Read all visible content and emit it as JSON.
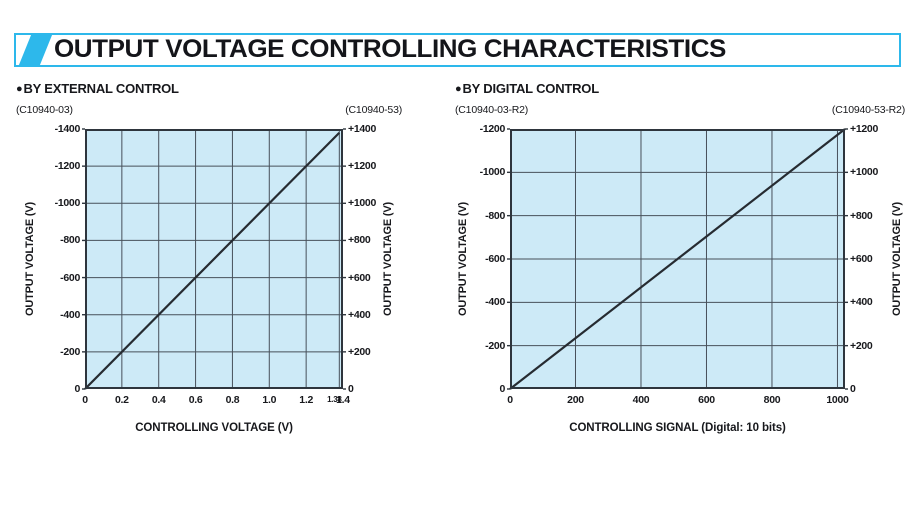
{
  "page": {
    "title": "OUTPUT VOLTAGE CONTROLLING CHARACTERISTICS"
  },
  "colors": {
    "accent_cyan": "#2db8eb",
    "plot_bg": "#cdeaf7",
    "grid_line": "#47505a",
    "frame": "#2e353d",
    "data_line": "#262b31",
    "text": "#17181c"
  },
  "chart_data": [
    {
      "type": "line",
      "bullet": "●",
      "section_label": "BY EXTERNAL CONTROL",
      "code_left": "(C10940-03)",
      "code_right": "(C10940-53)",
      "xlabel": "CONTROLLING VOLTAGE (V)",
      "ylabel_left": "OUTPUT VOLTAGE (V)",
      "ylabel_right": "OUTPUT VOLTAGE (V)",
      "grid": true,
      "legend": "none",
      "xlim": [
        0,
        1.4
      ],
      "ylim": [
        0,
        1400
      ],
      "x_ticks": [
        {
          "v": 0,
          "label": "0"
        },
        {
          "v": 0.2,
          "label": "0.2"
        },
        {
          "v": 0.4,
          "label": "0.4"
        },
        {
          "v": 0.6,
          "label": "0.6"
        },
        {
          "v": 0.8,
          "label": "0.8"
        },
        {
          "v": 1.0,
          "label": "1.0"
        },
        {
          "v": 1.2,
          "label": "1.2"
        },
        {
          "v": 1.38,
          "label": "1.38",
          "small": true
        },
        {
          "v": 1.4,
          "label": "1.4"
        }
      ],
      "y_ticks": [
        {
          "v": 0,
          "left": "0",
          "right": "0"
        },
        {
          "v": 200,
          "left": "-200",
          "right": "+200"
        },
        {
          "v": 400,
          "left": "-400",
          "right": "+400"
        },
        {
          "v": 600,
          "left": "-600",
          "right": "+600"
        },
        {
          "v": 800,
          "left": "-800",
          "right": "+800"
        },
        {
          "v": 1000,
          "left": "-1000",
          "right": "+1000"
        },
        {
          "v": 1200,
          "left": "-1200",
          "right": "+1200"
        },
        {
          "v": 1400,
          "left": "-1400",
          "right": "+1400"
        }
      ],
      "series": [
        {
          "name": "output voltage vs controlling voltage",
          "x": [
            0,
            1.38
          ],
          "y": [
            0,
            1380
          ]
        }
      ]
    },
    {
      "type": "line",
      "bullet": "●",
      "section_label": "BY DIGITAL CONTROL",
      "code_left": "(C10940-03-R2)",
      "code_right": "(C10940-53-R2)",
      "xlabel": "CONTROLLING SIGNAL (Digital: 10 bits)",
      "ylabel_left": "OUTPUT VOLTAGE (V)",
      "ylabel_right": "OUTPUT VOLTAGE (V)",
      "grid": true,
      "legend": "none",
      "xlim": [
        0,
        1023
      ],
      "ylim": [
        0,
        1200
      ],
      "x_ticks": [
        {
          "v": 0,
          "label": "0"
        },
        {
          "v": 200,
          "label": "200"
        },
        {
          "v": 400,
          "label": "400"
        },
        {
          "v": 600,
          "label": "600"
        },
        {
          "v": 800,
          "label": "800"
        },
        {
          "v": 1000,
          "label": "1000"
        }
      ],
      "y_ticks": [
        {
          "v": 0,
          "left": "0",
          "right": "0"
        },
        {
          "v": 200,
          "left": "-200",
          "right": "+200"
        },
        {
          "v": 400,
          "left": "-400",
          "right": "+400"
        },
        {
          "v": 600,
          "left": "-600",
          "right": "+600"
        },
        {
          "v": 800,
          "left": "-800",
          "right": "+800"
        },
        {
          "v": 1000,
          "left": "-1000",
          "right": "+1000"
        },
        {
          "v": 1200,
          "left": "-1200",
          "right": "+1200"
        }
      ],
      "series": [
        {
          "name": "output voltage vs digital controlling signal",
          "x": [
            0,
            1023
          ],
          "y": [
            0,
            1200
          ]
        }
      ]
    }
  ]
}
